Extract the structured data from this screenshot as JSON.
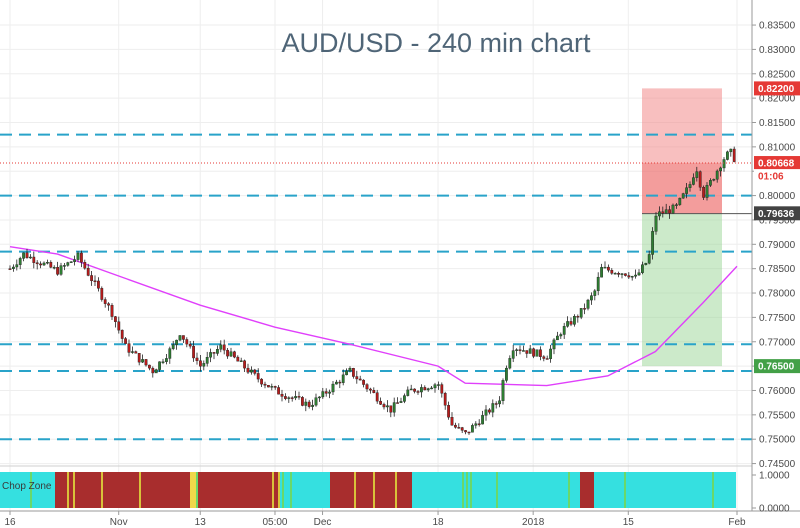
{
  "chart_data": {
    "type": "candlestick",
    "title": "AUD/USD - 240 min chart",
    "xlabel": "",
    "ylabel": "",
    "ylim": [
      0.7445,
      0.8385
    ],
    "y_ticks": [
      "0.83500",
      "0.83000",
      "0.82500",
      "0.82000",
      "0.81500",
      "0.81000",
      "0.80500",
      "0.80000",
      "0.79500",
      "0.79000",
      "0.78500",
      "0.78000",
      "0.77500",
      "0.77000",
      "0.76500",
      "0.76000",
      "0.75500",
      "0.75000",
      "0.74500"
    ],
    "x_ticks": [
      "16",
      "Nov",
      "13",
      "05:00",
      "Dec",
      "18",
      "2018",
      "15",
      "Feb"
    ],
    "grid": true,
    "price_series": [
      {
        "date": "Oct 16",
        "close": 0.785
      },
      {
        "date": "Oct 18",
        "close": 0.788
      },
      {
        "date": "Oct 23",
        "close": 0.7845
      },
      {
        "date": "Oct 26",
        "close": 0.7875
      },
      {
        "date": "Oct 31",
        "close": 0.776
      },
      {
        "date": "Nov 2",
        "close": 0.769
      },
      {
        "date": "Nov 6",
        "close": 0.764
      },
      {
        "date": "Nov 9",
        "close": 0.769
      },
      {
        "date": "Nov 10",
        "close": 0.772
      },
      {
        "date": "Nov 13",
        "close": 0.765
      },
      {
        "date": "Nov 16",
        "close": 0.769
      },
      {
        "date": "Nov 21",
        "close": 0.763
      },
      {
        "date": "Nov 24",
        "close": 0.76
      },
      {
        "date": "Nov 29",
        "close": 0.757
      },
      {
        "date": "Dec 1",
        "close": 0.759
      },
      {
        "date": "Dec 5",
        "close": 0.764
      },
      {
        "date": "Dec 8",
        "close": 0.76
      },
      {
        "date": "Dec 11",
        "close": 0.756
      },
      {
        "date": "Dec 14",
        "close": 0.76
      },
      {
        "date": "Dec 18",
        "close": 0.7615
      },
      {
        "date": "Dec 20",
        "close": 0.753
      },
      {
        "date": "Dec 22",
        "close": 0.751
      },
      {
        "date": "Dec 27",
        "close": 0.758
      },
      {
        "date": "Dec 28",
        "close": 0.765
      },
      {
        "date": "Dec 29",
        "close": 0.769
      },
      {
        "date": "Jan 3",
        "close": 0.767
      },
      {
        "date": "Jan 5",
        "close": 0.772
      },
      {
        "date": "Jan 8",
        "close": 0.776
      },
      {
        "date": "Jan 10",
        "close": 0.78
      },
      {
        "date": "Jan 11",
        "close": 0.785
      },
      {
        "date": "Jan 15",
        "close": 0.784
      },
      {
        "date": "Jan 16",
        "close": 0.783
      },
      {
        "date": "Jan 18",
        "close": 0.787
      },
      {
        "date": "Jan 19",
        "close": 0.796
      },
      {
        "date": "Jan 22",
        "close": 0.7975
      },
      {
        "date": "Jan 24",
        "close": 0.802
      },
      {
        "date": "Jan 25",
        "close": 0.806
      },
      {
        "date": "Jan 26",
        "close": 0.8
      },
      {
        "date": "Jan 29",
        "close": 0.8075
      },
      {
        "date": "Jan 30",
        "close": 0.809
      },
      {
        "date": "Jan 31",
        "close": 0.8067
      }
    ],
    "moving_average": [
      {
        "date": "Oct 16",
        "value": 0.7895
      },
      {
        "date": "Oct 23",
        "value": 0.788
      },
      {
        "date": "Nov 1",
        "value": 0.7835
      },
      {
        "date": "Nov 13",
        "value": 0.7775
      },
      {
        "date": "Nov 24",
        "value": 0.773
      },
      {
        "date": "Dec 5",
        "value": 0.7695
      },
      {
        "date": "Dec 18",
        "value": 0.765
      },
      {
        "date": "Dec 22",
        "value": 0.7615
      },
      {
        "date": "Jan 3",
        "value": 0.761
      },
      {
        "date": "Jan 12",
        "value": 0.763
      },
      {
        "date": "Jan 19",
        "value": 0.768
      },
      {
        "date": "Jan 26",
        "value": 0.778
      },
      {
        "date": "Jan 31",
        "value": 0.7855
      }
    ],
    "horizontal_levels": [
      0.8125,
      0.8,
      0.7885,
      0.7695,
      0.764,
      0.75
    ],
    "current_price_level": 0.8067,
    "trade_box": {
      "entry": 0.7963,
      "stop": 0.822,
      "target": 0.765
    },
    "price_tags": [
      {
        "label": "0.82200",
        "value": 0.822,
        "color": "#e53935",
        "text_color": "#ffffff"
      },
      {
        "label": "0.80668",
        "value": 0.80668,
        "color": "#e53935",
        "text_color": "#ffffff"
      },
      {
        "label": "01:06",
        "value": 0.804,
        "color": "#ffffff",
        "text_color": "#e53935"
      },
      {
        "label": "0.79636",
        "value": 0.79636,
        "color": "#424242",
        "text_color": "#ffffff"
      },
      {
        "label": "0.76500",
        "value": 0.765,
        "color": "#43a047",
        "text_color": "#ffffff"
      }
    ],
    "indicator": {
      "name": "Chop Zone",
      "y_ticks": [
        "1.0000",
        "0.0000"
      ]
    },
    "colors": {
      "up": "#2e7d32",
      "down": "#b71c1c",
      "ma": "#e040fb",
      "levels": "#29a3c9",
      "title": "#4f6577"
    }
  }
}
